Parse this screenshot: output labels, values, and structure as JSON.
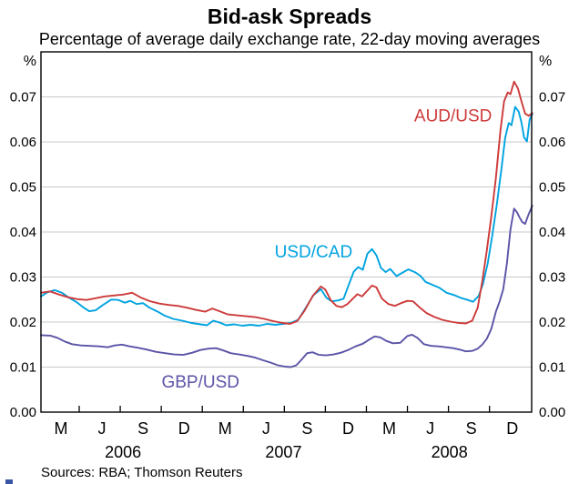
{
  "header": {
    "title": "Bid-ask Spreads",
    "subtitle": "Percentage of average daily exchange rate, 22-day moving averages"
  },
  "footer": {
    "sources": "Sources: RBA; Thomson Reuters"
  },
  "artifact": {
    "color": "#3a55a5"
  },
  "chart_data": {
    "type": "line",
    "title": "Bid-ask Spreads",
    "subtitle": "Percentage of average daily exchange rate, 22-day moving averages",
    "unit_label": "%",
    "xlim": [
      2006.04,
      2009.03
    ],
    "ylim": [
      0,
      0.08
    ],
    "grid": true,
    "grid_color": "#c9c9c9",
    "axis_color": "#000000",
    "y_ticks": [
      0,
      0.01,
      0.02,
      0.03,
      0.04,
      0.05,
      0.06,
      0.07
    ],
    "x_ticks": [
      2006.273,
      2006.523,
      2006.773,
      2007.023,
      2007.273,
      2007.523,
      2007.773,
      2008.023,
      2008.273,
      2008.523,
      2008.773
    ],
    "x_month_labels": [
      {
        "label": "M",
        "x": 2006.162
      },
      {
        "label": "J",
        "x": 2006.412
      },
      {
        "label": "S",
        "x": 2006.662
      },
      {
        "label": "D",
        "x": 2006.912
      },
      {
        "label": "M",
        "x": 2007.162
      },
      {
        "label": "J",
        "x": 2007.412
      },
      {
        "label": "S",
        "x": 2007.662
      },
      {
        "label": "D",
        "x": 2007.912
      },
      {
        "label": "M",
        "x": 2008.162
      },
      {
        "label": "J",
        "x": 2008.412
      },
      {
        "label": "S",
        "x": 2008.662
      },
      {
        "label": "D",
        "x": 2008.912
      }
    ],
    "x_year_labels": [
      {
        "label": "2006",
        "x": 2006.54
      },
      {
        "label": "2007",
        "x": 2007.518
      },
      {
        "label": "2008",
        "x": 2008.529
      }
    ],
    "series": [
      {
        "name": "GBP/USD",
        "color": "#5b53a7",
        "label": {
          "x": 2007.012,
          "y": 0.0067
        },
        "points": [
          [
            2006.04,
            0.0171
          ],
          [
            2006.096,
            0.017
          ],
          [
            2006.14,
            0.0165
          ],
          [
            2006.184,
            0.0157
          ],
          [
            2006.229,
            0.0151
          ],
          [
            2006.284,
            0.0148
          ],
          [
            2006.34,
            0.0147
          ],
          [
            2006.396,
            0.0146
          ],
          [
            2006.446,
            0.0144
          ],
          [
            2006.49,
            0.0148
          ],
          [
            2006.534,
            0.015
          ],
          [
            2006.579,
            0.0146
          ],
          [
            2006.629,
            0.0143
          ],
          [
            2006.684,
            0.0139
          ],
          [
            2006.74,
            0.0134
          ],
          [
            2006.796,
            0.0131
          ],
          [
            2006.851,
            0.0128
          ],
          [
            2006.907,
            0.0127
          ],
          [
            2006.962,
            0.0132
          ],
          [
            2007.012,
            0.0138
          ],
          [
            2007.062,
            0.0141
          ],
          [
            2007.107,
            0.0142
          ],
          [
            2007.151,
            0.0137
          ],
          [
            2007.196,
            0.0131
          ],
          [
            2007.246,
            0.0128
          ],
          [
            2007.296,
            0.0125
          ],
          [
            2007.346,
            0.0121
          ],
          [
            2007.396,
            0.0115
          ],
          [
            2007.44,
            0.011
          ],
          [
            2007.484,
            0.0104
          ],
          [
            2007.529,
            0.0101
          ],
          [
            2007.562,
            0.01
          ],
          [
            2007.596,
            0.0104
          ],
          [
            2007.629,
            0.0117
          ],
          [
            2007.662,
            0.0131
          ],
          [
            2007.696,
            0.0133
          ],
          [
            2007.734,
            0.0127
          ],
          [
            2007.779,
            0.0126
          ],
          [
            2007.823,
            0.0128
          ],
          [
            2007.868,
            0.0132
          ],
          [
            2007.912,
            0.0138
          ],
          [
            2007.957,
            0.0146
          ],
          [
            2008.001,
            0.0152
          ],
          [
            2008.04,
            0.0161
          ],
          [
            2008.073,
            0.0168
          ],
          [
            2008.107,
            0.0166
          ],
          [
            2008.146,
            0.0158
          ],
          [
            2008.184,
            0.0153
          ],
          [
            2008.229,
            0.0154
          ],
          [
            2008.273,
            0.0169
          ],
          [
            2008.301,
            0.0172
          ],
          [
            2008.334,
            0.0165
          ],
          [
            2008.373,
            0.0151
          ],
          [
            2008.418,
            0.0147
          ],
          [
            2008.462,
            0.0146
          ],
          [
            2008.507,
            0.0144
          ],
          [
            2008.551,
            0.0142
          ],
          [
            2008.59,
            0.0139
          ],
          [
            2008.629,
            0.0135
          ],
          [
            2008.668,
            0.0136
          ],
          [
            2008.701,
            0.0141
          ],
          [
            2008.729,
            0.015
          ],
          [
            2008.757,
            0.0163
          ],
          [
            2008.784,
            0.0185
          ],
          [
            2008.812,
            0.0223
          ],
          [
            2008.834,
            0.0245
          ],
          [
            2008.857,
            0.0273
          ],
          [
            2008.879,
            0.033
          ],
          [
            2008.901,
            0.0405
          ],
          [
            2008.923,
            0.0452
          ],
          [
            2008.94,
            0.0444
          ],
          [
            2008.957,
            0.0432
          ],
          [
            2008.973,
            0.0422
          ],
          [
            2008.99,
            0.0418
          ],
          [
            2009.012,
            0.044
          ],
          [
            2009.034,
            0.0458
          ]
        ]
      },
      {
        "name": "USD/CAD",
        "color": "#00a3e0",
        "label": {
          "x": 2007.701,
          "y": 0.0356
        },
        "points": [
          [
            2006.04,
            0.0257
          ],
          [
            2006.079,
            0.0266
          ],
          [
            2006.123,
            0.0271
          ],
          [
            2006.168,
            0.0265
          ],
          [
            2006.212,
            0.0254
          ],
          [
            2006.262,
            0.0243
          ],
          [
            2006.301,
            0.0232
          ],
          [
            2006.334,
            0.0224
          ],
          [
            2006.373,
            0.0226
          ],
          [
            2006.418,
            0.0238
          ],
          [
            2006.468,
            0.025
          ],
          [
            2006.512,
            0.0249
          ],
          [
            2006.551,
            0.0243
          ],
          [
            2006.584,
            0.0247
          ],
          [
            2006.623,
            0.024
          ],
          [
            2006.662,
            0.0242
          ],
          [
            2006.701,
            0.0232
          ],
          [
            2006.746,
            0.0224
          ],
          [
            2006.79,
            0.0215
          ],
          [
            2006.846,
            0.0207
          ],
          [
            2006.901,
            0.0203
          ],
          [
            2006.957,
            0.0198
          ],
          [
            2007.012,
            0.0195
          ],
          [
            2007.051,
            0.0193
          ],
          [
            2007.09,
            0.0203
          ],
          [
            2007.129,
            0.0199
          ],
          [
            2007.168,
            0.0193
          ],
          [
            2007.218,
            0.0195
          ],
          [
            2007.268,
            0.0192
          ],
          [
            2007.318,
            0.0194
          ],
          [
            2007.368,
            0.0192
          ],
          [
            2007.418,
            0.0196
          ],
          [
            2007.468,
            0.0194
          ],
          [
            2007.518,
            0.0196
          ],
          [
            2007.562,
            0.0198
          ],
          [
            2007.607,
            0.0205
          ],
          [
            2007.651,
            0.023
          ],
          [
            2007.701,
            0.026
          ],
          [
            2007.746,
            0.0273
          ],
          [
            2007.779,
            0.0254
          ],
          [
            2007.812,
            0.0246
          ],
          [
            2007.851,
            0.0248
          ],
          [
            2007.884,
            0.0252
          ],
          [
            2007.918,
            0.0285
          ],
          [
            2007.946,
            0.0312
          ],
          [
            2007.973,
            0.0322
          ],
          [
            2008.001,
            0.0316
          ],
          [
            2008.029,
            0.0352
          ],
          [
            2008.057,
            0.0362
          ],
          [
            2008.084,
            0.0348
          ],
          [
            2008.112,
            0.032
          ],
          [
            2008.14,
            0.0311
          ],
          [
            2008.168,
            0.0318
          ],
          [
            2008.207,
            0.0302
          ],
          [
            2008.24,
            0.0309
          ],
          [
            2008.279,
            0.0317
          ],
          [
            2008.318,
            0.0311
          ],
          [
            2008.351,
            0.0303
          ],
          [
            2008.384,
            0.0289
          ],
          [
            2008.423,
            0.0283
          ],
          [
            2008.468,
            0.0276
          ],
          [
            2008.512,
            0.0265
          ],
          [
            2008.557,
            0.026
          ],
          [
            2008.596,
            0.0254
          ],
          [
            2008.634,
            0.025
          ],
          [
            2008.673,
            0.0245
          ],
          [
            2008.707,
            0.0258
          ],
          [
            2008.734,
            0.0285
          ],
          [
            2008.762,
            0.033
          ],
          [
            2008.79,
            0.0392
          ],
          [
            2008.818,
            0.0462
          ],
          [
            2008.846,
            0.054
          ],
          [
            2008.868,
            0.0608
          ],
          [
            2008.89,
            0.0642
          ],
          [
            2008.907,
            0.0637
          ],
          [
            2008.929,
            0.0678
          ],
          [
            2008.951,
            0.0667
          ],
          [
            2008.968,
            0.0643
          ],
          [
            2008.984,
            0.061
          ],
          [
            2009.001,
            0.0601
          ],
          [
            2009.018,
            0.065
          ],
          [
            2009.034,
            0.0662
          ]
        ]
      },
      {
        "name": "AUD/USD",
        "color": "#cd3a3a",
        "label": {
          "x": 2008.551,
          "y": 0.0658
        },
        "points": [
          [
            2006.04,
            0.0265
          ],
          [
            2006.096,
            0.0268
          ],
          [
            2006.151,
            0.0261
          ],
          [
            2006.207,
            0.0255
          ],
          [
            2006.262,
            0.0251
          ],
          [
            2006.318,
            0.0249
          ],
          [
            2006.373,
            0.0253
          ],
          [
            2006.429,
            0.0257
          ],
          [
            2006.484,
            0.0259
          ],
          [
            2006.54,
            0.0261
          ],
          [
            2006.596,
            0.0265
          ],
          [
            2006.651,
            0.0254
          ],
          [
            2006.707,
            0.0246
          ],
          [
            2006.762,
            0.0241
          ],
          [
            2006.818,
            0.0238
          ],
          [
            2006.873,
            0.0236
          ],
          [
            2006.929,
            0.0232
          ],
          [
            2006.984,
            0.0227
          ],
          [
            2007.04,
            0.0223
          ],
          [
            2007.084,
            0.023
          ],
          [
            2007.129,
            0.0224
          ],
          [
            2007.179,
            0.0217
          ],
          [
            2007.234,
            0.0215
          ],
          [
            2007.29,
            0.0213
          ],
          [
            2007.346,
            0.0211
          ],
          [
            2007.401,
            0.0207
          ],
          [
            2007.457,
            0.0202
          ],
          [
            2007.512,
            0.0198
          ],
          [
            2007.557,
            0.0196
          ],
          [
            2007.601,
            0.0202
          ],
          [
            2007.646,
            0.0225
          ],
          [
            2007.696,
            0.0258
          ],
          [
            2007.746,
            0.0279
          ],
          [
            2007.773,
            0.0272
          ],
          [
            2007.807,
            0.0248
          ],
          [
            2007.84,
            0.0236
          ],
          [
            2007.873,
            0.0233
          ],
          [
            2007.907,
            0.024
          ],
          [
            2007.94,
            0.0252
          ],
          [
            2007.968,
            0.0262
          ],
          [
            2007.996,
            0.0257
          ],
          [
            2008.029,
            0.027
          ],
          [
            2008.057,
            0.0281
          ],
          [
            2008.084,
            0.0277
          ],
          [
            2008.118,
            0.0252
          ],
          [
            2008.157,
            0.024
          ],
          [
            2008.196,
            0.0236
          ],
          [
            2008.234,
            0.0242
          ],
          [
            2008.273,
            0.0247
          ],
          [
            2008.307,
            0.0246
          ],
          [
            2008.346,
            0.0233
          ],
          [
            2008.39,
            0.022
          ],
          [
            2008.434,
            0.0212
          ],
          [
            2008.484,
            0.0205
          ],
          [
            2008.534,
            0.0201
          ],
          [
            2008.584,
            0.0198
          ],
          [
            2008.629,
            0.0197
          ],
          [
            2008.668,
            0.0203
          ],
          [
            2008.701,
            0.0232
          ],
          [
            2008.729,
            0.029
          ],
          [
            2008.757,
            0.036
          ],
          [
            2008.784,
            0.0435
          ],
          [
            2008.812,
            0.052
          ],
          [
            2008.84,
            0.0625
          ],
          [
            2008.862,
            0.069
          ],
          [
            2008.884,
            0.071
          ],
          [
            2008.901,
            0.0706
          ],
          [
            2008.923,
            0.0734
          ],
          [
            2008.946,
            0.0719
          ],
          [
            2008.968,
            0.069
          ],
          [
            2008.99,
            0.0663
          ],
          [
            2009.012,
            0.0658
          ],
          [
            2009.034,
            0.0664
          ]
        ]
      }
    ]
  }
}
